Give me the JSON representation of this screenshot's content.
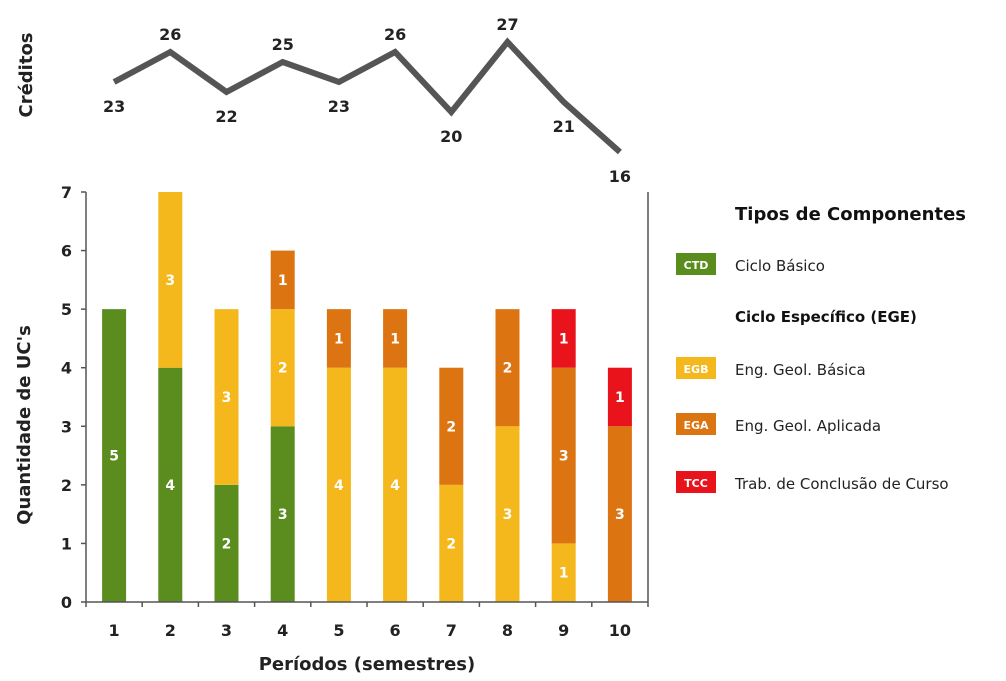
{
  "chart_data": {
    "type": "bar",
    "stacked": true,
    "xlabel": "Períodos (semestres)",
    "ylabel": "Quantidade de UC's",
    "ylim": [
      0,
      7
    ],
    "yticks": [
      "0",
      "1",
      "2",
      "3",
      "4",
      "5",
      "6",
      "7"
    ],
    "categories": [
      "1",
      "2",
      "3",
      "4",
      "5",
      "6",
      "7",
      "8",
      "9",
      "10"
    ],
    "series": [
      {
        "name": "Ciclo Básico",
        "code": "CTD",
        "color": "#5b8c1e",
        "values": [
          5,
          4,
          2,
          3,
          0,
          0,
          0,
          0,
          0,
          0
        ]
      },
      {
        "name": "Eng. Geol. Básica",
        "code": "EGB",
        "color": "#f5b81c",
        "values": [
          0,
          3,
          3,
          2,
          4,
          4,
          2,
          3,
          1,
          0
        ]
      },
      {
        "name": "Eng. Geol. Aplicada",
        "code": "EGA",
        "color": "#dd7412",
        "values": [
          0,
          0,
          0,
          1,
          1,
          1,
          2,
          2,
          3,
          3
        ]
      },
      {
        "name": "Trab. de Conclusão de Curso",
        "code": "TCC",
        "color": "#e8131b",
        "values": [
          0,
          0,
          0,
          0,
          0,
          0,
          0,
          0,
          1,
          1
        ]
      }
    ],
    "value_labels": [
      [
        "5",
        "",
        "",
        ""
      ],
      [
        "4",
        "3",
        "",
        ""
      ],
      [
        "2",
        "3",
        "",
        ""
      ],
      [
        "3",
        "2",
        "1",
        ""
      ],
      [
        "",
        "4",
        "1",
        ""
      ],
      [
        "",
        "4",
        "1",
        ""
      ],
      [
        "",
        "2",
        "2",
        ""
      ],
      [
        "",
        "3",
        "2",
        ""
      ],
      [
        "",
        "1",
        "3",
        "1"
      ],
      [
        "",
        "",
        "3",
        "1"
      ]
    ],
    "credits": {
      "label": "Créditos",
      "values": [
        23,
        26,
        22,
        25,
        23,
        26,
        20,
        27,
        21,
        16
      ],
      "value_labels": [
        "23",
        "26",
        "22",
        "25",
        "23",
        "26",
        "20",
        "27",
        "21",
        "16"
      ],
      "color": "#555555"
    },
    "legend": {
      "title": "Tipos de Componentes",
      "subtitle": "Ciclo Específico (EGE)",
      "placement": "right"
    },
    "grid": false
  }
}
